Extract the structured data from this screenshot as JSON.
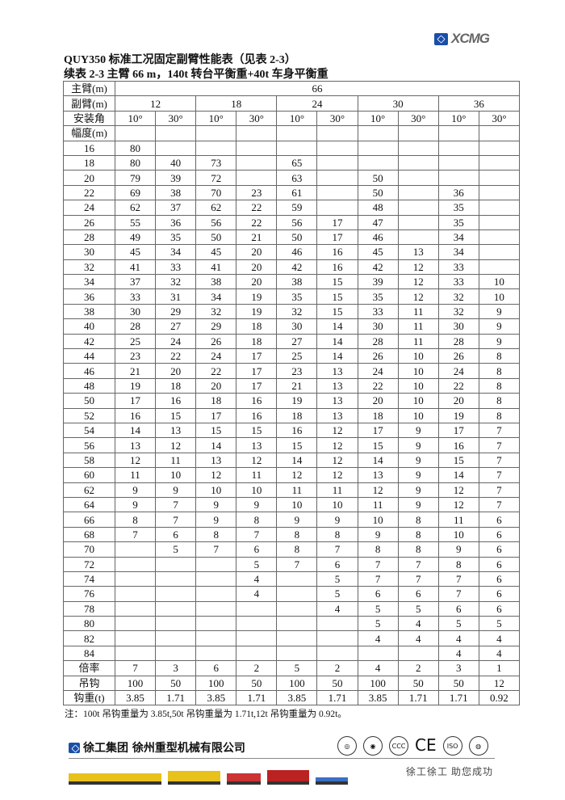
{
  "header": {
    "logo_text": "XCMG",
    "brand_color": "#1a4fa8"
  },
  "title": "QUY350 标准工况固定副臂性能表（见表 2-3）",
  "subtitle": "续表 2-3 主臂 66 m，140t 转台平衡重+40t 车身平衡重",
  "table": {
    "main_boom_label": "主臂(m)",
    "main_boom_value": "66",
    "jib_label": "副臂(m)",
    "jib_lengths": [
      "12",
      "18",
      "24",
      "30",
      "36"
    ],
    "angle_label": "安装角",
    "angles": [
      "10°",
      "30°",
      "10°",
      "30°",
      "10°",
      "30°",
      "10°",
      "30°",
      "10°",
      "30°"
    ],
    "radius_label": "幅度(m)",
    "rows": [
      {
        "radius": "16",
        "values": [
          "80",
          "",
          "",
          "",
          "",
          "",
          "",
          "",
          "",
          ""
        ]
      },
      {
        "radius": "18",
        "values": [
          "80",
          "40",
          "73",
          "",
          "65",
          "",
          "",
          "",
          "",
          ""
        ]
      },
      {
        "radius": "20",
        "values": [
          "79",
          "39",
          "72",
          "",
          "63",
          "",
          "50",
          "",
          "",
          ""
        ]
      },
      {
        "radius": "22",
        "values": [
          "69",
          "38",
          "70",
          "23",
          "61",
          "",
          "50",
          "",
          "36",
          ""
        ]
      },
      {
        "radius": "24",
        "values": [
          "62",
          "37",
          "62",
          "22",
          "59",
          "",
          "48",
          "",
          "35",
          ""
        ]
      },
      {
        "radius": "26",
        "values": [
          "55",
          "36",
          "56",
          "22",
          "56",
          "17",
          "47",
          "",
          "35",
          ""
        ]
      },
      {
        "radius": "28",
        "values": [
          "49",
          "35",
          "50",
          "21",
          "50",
          "17",
          "46",
          "",
          "34",
          ""
        ]
      },
      {
        "radius": "30",
        "values": [
          "45",
          "34",
          "45",
          "20",
          "46",
          "16",
          "45",
          "13",
          "34",
          ""
        ]
      },
      {
        "radius": "32",
        "values": [
          "41",
          "33",
          "41",
          "20",
          "42",
          "16",
          "42",
          "12",
          "33",
          ""
        ]
      },
      {
        "radius": "34",
        "values": [
          "37",
          "32",
          "38",
          "20",
          "38",
          "15",
          "39",
          "12",
          "33",
          "10"
        ]
      },
      {
        "radius": "36",
        "values": [
          "33",
          "31",
          "34",
          "19",
          "35",
          "15",
          "35",
          "12",
          "32",
          "10"
        ]
      },
      {
        "radius": "38",
        "values": [
          "30",
          "29",
          "32",
          "19",
          "32",
          "15",
          "33",
          "11",
          "32",
          "9"
        ]
      },
      {
        "radius": "40",
        "values": [
          "28",
          "27",
          "29",
          "18",
          "30",
          "14",
          "30",
          "11",
          "30",
          "9"
        ]
      },
      {
        "radius": "42",
        "values": [
          "25",
          "24",
          "26",
          "18",
          "27",
          "14",
          "28",
          "11",
          "28",
          "9"
        ]
      },
      {
        "radius": "44",
        "values": [
          "23",
          "22",
          "24",
          "17",
          "25",
          "14",
          "26",
          "10",
          "26",
          "8"
        ]
      },
      {
        "radius": "46",
        "values": [
          "21",
          "20",
          "22",
          "17",
          "23",
          "13",
          "24",
          "10",
          "24",
          "8"
        ]
      },
      {
        "radius": "48",
        "values": [
          "19",
          "18",
          "20",
          "17",
          "21",
          "13",
          "22",
          "10",
          "22",
          "8"
        ]
      },
      {
        "radius": "50",
        "values": [
          "17",
          "16",
          "18",
          "16",
          "19",
          "13",
          "20",
          "10",
          "20",
          "8"
        ]
      },
      {
        "radius": "52",
        "values": [
          "16",
          "15",
          "17",
          "16",
          "18",
          "13",
          "18",
          "10",
          "19",
          "8"
        ]
      },
      {
        "radius": "54",
        "values": [
          "14",
          "13",
          "15",
          "15",
          "16",
          "12",
          "17",
          "9",
          "17",
          "7"
        ]
      },
      {
        "radius": "56",
        "values": [
          "13",
          "12",
          "14",
          "13",
          "15",
          "12",
          "15",
          "9",
          "16",
          "7"
        ]
      },
      {
        "radius": "58",
        "values": [
          "12",
          "11",
          "13",
          "12",
          "14",
          "12",
          "14",
          "9",
          "15",
          "7"
        ]
      },
      {
        "radius": "60",
        "values": [
          "11",
          "10",
          "12",
          "11",
          "12",
          "12",
          "13",
          "9",
          "14",
          "7"
        ]
      },
      {
        "radius": "62",
        "values": [
          "9",
          "9",
          "10",
          "10",
          "11",
          "11",
          "12",
          "9",
          "12",
          "7"
        ]
      },
      {
        "radius": "64",
        "values": [
          "9",
          "7",
          "9",
          "9",
          "10",
          "10",
          "11",
          "9",
          "12",
          "7"
        ]
      },
      {
        "radius": "66",
        "values": [
          "8",
          "7",
          "9",
          "8",
          "9",
          "9",
          "10",
          "8",
          "11",
          "6"
        ]
      },
      {
        "radius": "68",
        "values": [
          "7",
          "6",
          "8",
          "7",
          "8",
          "8",
          "9",
          "8",
          "10",
          "6"
        ]
      },
      {
        "radius": "70",
        "values": [
          "",
          "5",
          "7",
          "6",
          "8",
          "7",
          "8",
          "8",
          "9",
          "6"
        ]
      },
      {
        "radius": "72",
        "values": [
          "",
          "",
          "",
          "5",
          "7",
          "6",
          "7",
          "7",
          "8",
          "6"
        ]
      },
      {
        "radius": "74",
        "values": [
          "",
          "",
          "",
          "4",
          "",
          "5",
          "7",
          "7",
          "7",
          "6"
        ]
      },
      {
        "radius": "76",
        "values": [
          "",
          "",
          "",
          "4",
          "",
          "5",
          "6",
          "6",
          "7",
          "6"
        ]
      },
      {
        "radius": "78",
        "values": [
          "",
          "",
          "",
          "",
          "",
          "4",
          "5",
          "5",
          "6",
          "6"
        ]
      },
      {
        "radius": "80",
        "values": [
          "",
          "",
          "",
          "",
          "",
          "",
          "5",
          "4",
          "5",
          "5"
        ]
      },
      {
        "radius": "82",
        "values": [
          "",
          "",
          "",
          "",
          "",
          "",
          "4",
          "4",
          "4",
          "4"
        ]
      },
      {
        "radius": "84",
        "values": [
          "",
          "",
          "",
          "",
          "",
          "",
          "",
          "",
          "4",
          "4"
        ]
      }
    ],
    "footer_rows": [
      {
        "label": "倍率",
        "values": [
          "7",
          "3",
          "6",
          "2",
          "5",
          "2",
          "4",
          "2",
          "3",
          "1"
        ]
      },
      {
        "label": "吊钩",
        "values": [
          "100",
          "50",
          "100",
          "50",
          "100",
          "50",
          "100",
          "50",
          "50",
          "12"
        ]
      },
      {
        "label": "钩重(t)",
        "values": [
          "3.85",
          "1.71",
          "3.85",
          "1.71",
          "3.85",
          "1.71",
          "3.85",
          "1.71",
          "1.71",
          "0.92"
        ]
      }
    ]
  },
  "note": "注：100t 吊钩重量为 3.85t,50t 吊钩重量为 1.71t,12t 吊钩重量为 0.92t。",
  "footer": {
    "company": "徐工集团 徐州重型机械有限公司",
    "certifications": [
      "seal-1",
      "seal-2",
      "CCC",
      "CE",
      "ISO",
      "seal-3"
    ],
    "slogan": "徐工徐工 助您成功"
  }
}
